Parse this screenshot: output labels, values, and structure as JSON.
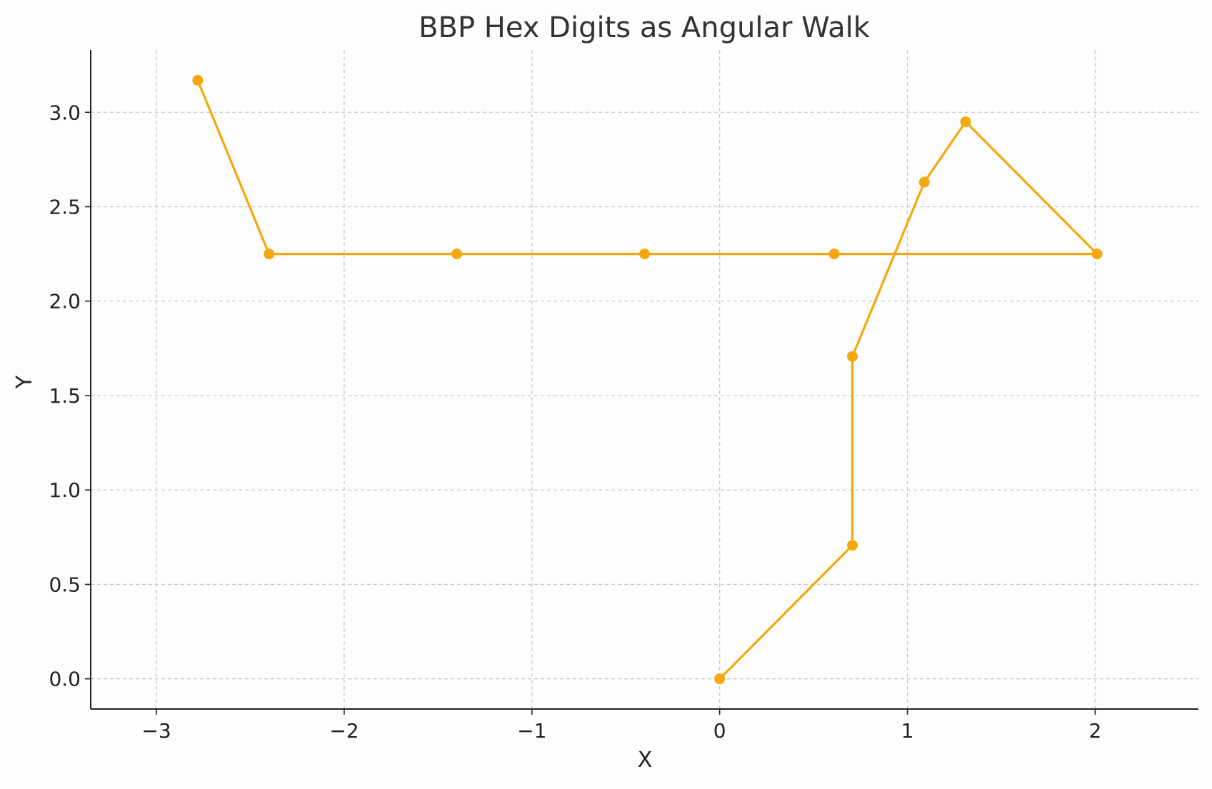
{
  "chart_data": {
    "type": "line",
    "title": "BBP Hex Digits as Angular Walk",
    "xlabel": "X",
    "ylabel": "Y",
    "xlim": [
      -3.35,
      2.55
    ],
    "ylim": [
      -0.16,
      3.33
    ],
    "xticks": [
      -3,
      -2,
      -1,
      0,
      1,
      2
    ],
    "xtick_labels": [
      "−3",
      "−2",
      "−1",
      "0",
      "1",
      "2"
    ],
    "yticks": [
      0.0,
      0.5,
      1.0,
      1.5,
      2.0,
      2.5,
      3.0
    ],
    "ytick_labels": [
      "0.0",
      "0.5",
      "1.0",
      "1.5",
      "2.0",
      "2.5",
      "3.0"
    ],
    "grid": true,
    "series": [
      {
        "color": "#f5a80c",
        "marker": "circle",
        "x": [
          0,
          0.707,
          0.707,
          1.09,
          1.31,
          2.01,
          0.61,
          -0.4,
          -1.4,
          -2.4,
          -2.78
        ],
        "y": [
          0,
          0.707,
          1.707,
          2.63,
          2.95,
          2.25,
          2.25,
          2.25,
          2.25,
          2.25,
          3.17
        ]
      }
    ]
  },
  "colors": {
    "line": "#f5a80c",
    "grid": "#c8c8c8",
    "axis": "#222222",
    "text": "#333333",
    "background": "#fdfdfd"
  }
}
